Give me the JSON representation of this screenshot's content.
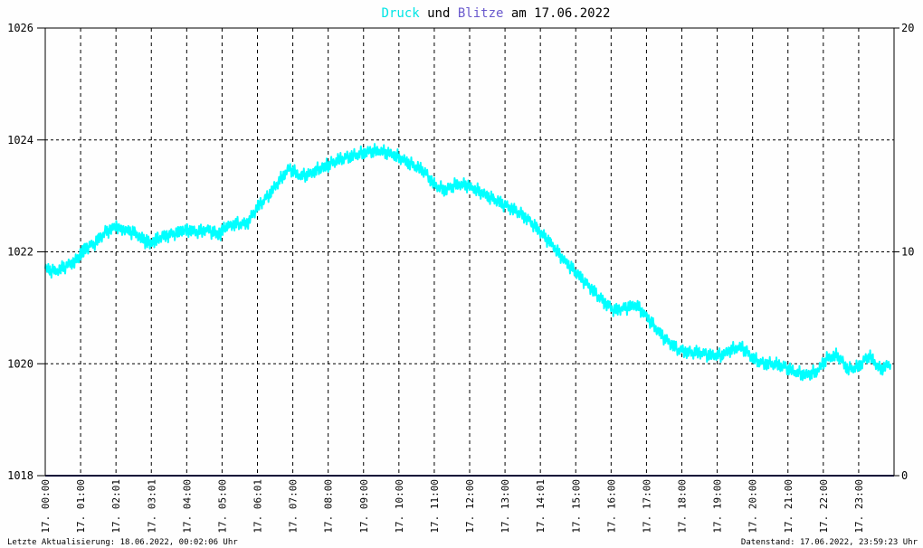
{
  "chart_data": {
    "type": "line",
    "title": {
      "word1": "Druck",
      "word2": " und ",
      "word3": "Blitze",
      "word4": " am 17.06.2022"
    },
    "colors": {
      "pressure": "#00ffff",
      "lightning": "#191970",
      "title_druck": "#00e5e5",
      "title_blitze": "#6a5acd",
      "title_text": "#000000"
    },
    "y_left": {
      "min": 1018,
      "max": 1026,
      "ticks": [
        1018,
        1020,
        1022,
        1024,
        1026
      ]
    },
    "y_right": {
      "min": 0,
      "max": 20,
      "ticks": [
        0,
        10,
        20
      ]
    },
    "x": {
      "min": 0,
      "max": 24
    },
    "x_ticks": [
      {
        "t": 1.0,
        "label": "17. 01:00"
      },
      {
        "t": 2.0,
        "label": "17. 02:01"
      },
      {
        "t": 3.0,
        "label": "17. 03:01"
      },
      {
        "t": 4.0,
        "label": "17. 04:00"
      },
      {
        "t": 5.0,
        "label": "17. 05:00"
      },
      {
        "t": 6.0,
        "label": "17. 06:01"
      },
      {
        "t": 7.0,
        "label": "17. 07:00"
      },
      {
        "t": 8.0,
        "label": "17. 08:00"
      },
      {
        "t": 9.0,
        "label": "17. 09:00"
      },
      {
        "t": 10.0,
        "label": "17. 10:00"
      },
      {
        "t": 11.0,
        "label": "17. 11:00"
      },
      {
        "t": 12.0,
        "label": "17. 12:00"
      },
      {
        "t": 13.0,
        "label": "17. 13:00"
      },
      {
        "t": 14.0,
        "label": "17. 14:01"
      },
      {
        "t": 15.0,
        "label": "17. 15:00"
      },
      {
        "t": 16.0,
        "label": "17. 16:00"
      },
      {
        "t": 17.0,
        "label": "17. 17:00"
      },
      {
        "t": 18.0,
        "label": "17. 18:00"
      },
      {
        "t": 19.0,
        "label": "17. 19:00"
      },
      {
        "t": 20.0,
        "label": "17. 20:00"
      },
      {
        "t": 21.0,
        "label": "17. 21:00"
      },
      {
        "t": 22.0,
        "label": "17. 22:00"
      },
      {
        "t": 23.0,
        "label": "17. 23:00"
      }
    ],
    "first_label": "17. 00:00",
    "grid": true,
    "series": [
      {
        "key": "druck",
        "x": [
          0,
          0.3,
          0.6,
          0.9,
          1.1,
          1.4,
          1.7,
          2.0,
          2.2,
          2.5,
          2.8,
          3.0,
          3.2,
          3.5,
          3.8,
          4.0,
          4.3,
          4.6,
          4.9,
          5.1,
          5.4,
          5.7,
          6.0,
          6.3,
          6.6,
          6.9,
          7.2,
          7.5,
          7.8,
          8.0,
          8.3,
          8.6,
          8.9,
          9.2,
          9.5,
          9.8,
          10.1,
          10.4,
          10.7,
          11.0,
          11.3,
          11.6,
          11.9,
          12.2,
          12.5,
          12.8,
          13.1,
          13.4,
          13.7,
          14.0,
          14.3,
          14.6,
          14.9,
          15.2,
          15.5,
          15.8,
          16.1,
          16.4,
          16.7,
          17.0,
          17.3,
          17.6,
          17.9,
          18.2,
          18.5,
          18.8,
          19.1,
          19.4,
          19.7,
          20.0,
          20.3,
          20.6,
          20.9,
          21.2,
          21.5,
          21.8,
          22.1,
          22.4,
          22.7,
          23.0,
          23.3,
          23.6,
          23.9
        ],
        "values": [
          1021.7,
          1021.65,
          1021.75,
          1021.85,
          1022.05,
          1022.15,
          1022.35,
          1022.45,
          1022.4,
          1022.35,
          1022.2,
          1022.15,
          1022.25,
          1022.3,
          1022.35,
          1022.4,
          1022.35,
          1022.4,
          1022.3,
          1022.45,
          1022.5,
          1022.5,
          1022.8,
          1023.0,
          1023.25,
          1023.5,
          1023.35,
          1023.4,
          1023.5,
          1023.55,
          1023.65,
          1023.7,
          1023.75,
          1023.8,
          1023.8,
          1023.75,
          1023.65,
          1023.55,
          1023.45,
          1023.2,
          1023.1,
          1023.2,
          1023.2,
          1023.1,
          1023.0,
          1022.9,
          1022.8,
          1022.7,
          1022.55,
          1022.35,
          1022.15,
          1021.9,
          1021.7,
          1021.5,
          1021.3,
          1021.1,
          1020.95,
          1021.0,
          1021.05,
          1020.85,
          1020.6,
          1020.4,
          1020.25,
          1020.2,
          1020.2,
          1020.15,
          1020.15,
          1020.25,
          1020.3,
          1020.1,
          1020.0,
          1020.0,
          1019.95,
          1019.85,
          1019.8,
          1019.85,
          1020.1,
          1020.15,
          1019.9,
          1019.95,
          1020.15,
          1019.9,
          1020.0
        ]
      },
      {
        "key": "blitze",
        "x": [
          0,
          24
        ],
        "values": [
          0,
          0
        ]
      }
    ]
  },
  "footer": {
    "left": "Letzte Aktualisierung: 18.06.2022, 00:02:06 Uhr",
    "right": "Datenstand: 17.06.2022, 23:59:23 Uhr"
  }
}
